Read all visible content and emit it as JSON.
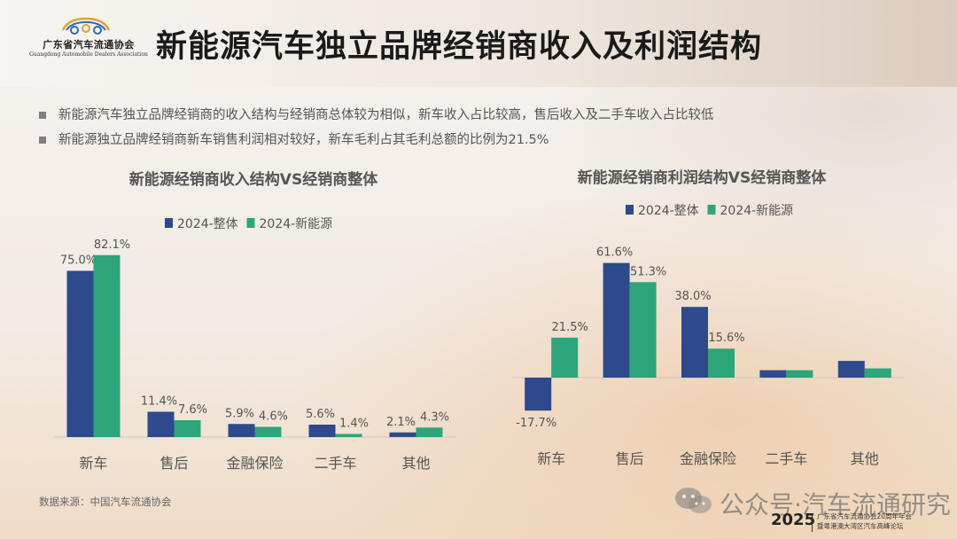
{
  "logo": {
    "name_cn": "广东省汽车流通协会",
    "name_en": "Guangdong Automobile Dealers Association"
  },
  "title": "新能源汽车独立品牌经销商收入及利润结构",
  "bullets": [
    "新能源汽车独立品牌经销商的收入结构与经销商总体较为相似，新车收入占比较高，售后收入及二手车收入占比较低",
    "新能源独立品牌经销商新车销售利润相对较好，新车毛利占其毛利总额的比例为21.5%"
  ],
  "colors": {
    "series_total": "#2e4a8c",
    "series_nev": "#2ca57a",
    "text": "#555555"
  },
  "chart_data": [
    {
      "type": "bar",
      "title": "新能源经销商收入结构VS经销商整体",
      "categories": [
        "新车",
        "售后",
        "金融保险",
        "二手车",
        "其他"
      ],
      "series": [
        {
          "name": "2024-整体",
          "values": [
            75.0,
            11.4,
            5.9,
            5.6,
            2.1
          ],
          "labels": [
            "75.0%",
            "11.4%",
            "5.9%",
            "5.6%",
            "2.1%"
          ]
        },
        {
          "name": "2024-新能源",
          "values": [
            82.1,
            7.6,
            4.6,
            1.4,
            4.3
          ],
          "labels": [
            "82.1%",
            "7.6%",
            "4.6%",
            "1.4%",
            "4.3%"
          ]
        }
      ],
      "ylim": [
        0,
        90
      ],
      "grid": false,
      "legend": "top"
    },
    {
      "type": "bar",
      "title": "新能源经销商利润结构VS经销商整体",
      "categories": [
        "新车",
        "售后",
        "金融保险",
        "二手车",
        "其他"
      ],
      "series": [
        {
          "name": "2024-整体",
          "values": [
            -17.7,
            61.6,
            38.0,
            4.0,
            9.0
          ],
          "labels": [
            "-17.7%",
            "61.6%",
            "38.0%",
            "",
            ""
          ]
        },
        {
          "name": "2024-新能源",
          "values": [
            21.5,
            51.3,
            15.6,
            4.0,
            5.0
          ],
          "labels": [
            "21.5%",
            "51.3%",
            "15.6%",
            "",
            ""
          ]
        }
      ],
      "ylim": [
        -20,
        70
      ],
      "grid": false,
      "legend": "top"
    }
  ],
  "source": "数据来源：中国汽车流通协会",
  "watermark": "公众号·汽车流通研究",
  "footer": {
    "year": "2025",
    "note_line1": "广东省汽车流通协会20周年年会",
    "note_line2": "暨粤港澳大湾区汽车高峰论坛"
  }
}
